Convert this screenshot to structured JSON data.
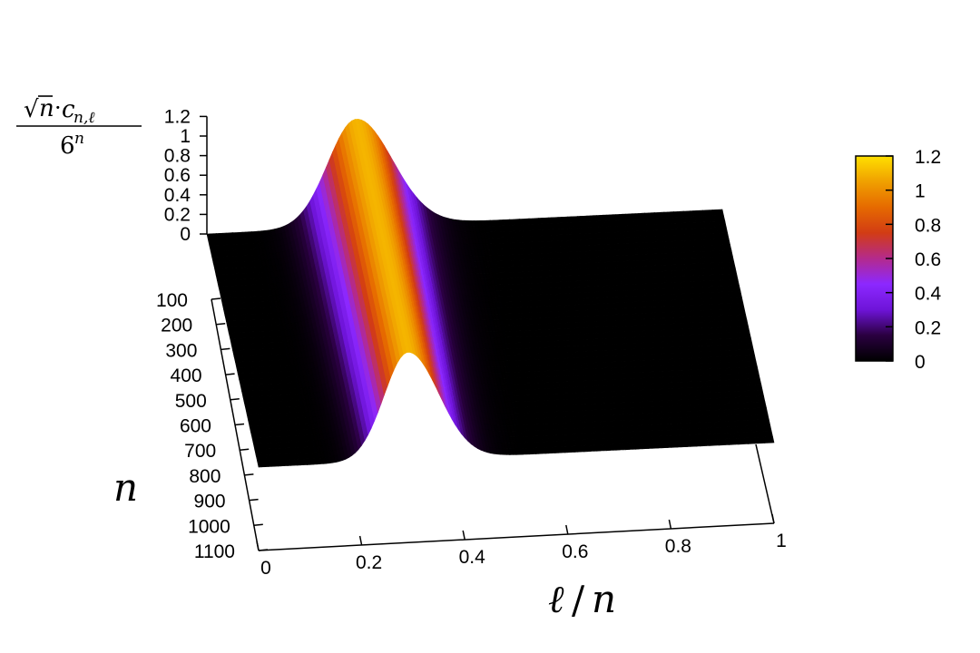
{
  "chart_data": {
    "type": "surface3d",
    "x_axis": {
      "label": "ℓ/n",
      "range": [
        0,
        1
      ],
      "ticks": [
        "0",
        "0.2",
        "0.4",
        "0.6",
        "0.8",
        "1"
      ]
    },
    "y_axis": {
      "label": "n",
      "range": [
        100,
        1100
      ],
      "ticks": [
        "100",
        "200",
        "300",
        "400",
        "500",
        "600",
        "700",
        "800",
        "900",
        "1000",
        "1100"
      ]
    },
    "z_axis": {
      "label": "√n·c_{n,ℓ} / 6^n",
      "range": [
        0,
        1.2
      ],
      "ticks": [
        "0",
        "0.2",
        "0.4",
        "0.6",
        "0.8",
        "1",
        "1.2"
      ]
    },
    "colorbar": {
      "range": [
        0,
        1.2
      ],
      "ticks": [
        "0",
        "0.2",
        "0.4",
        "0.6",
        "0.8",
        "1",
        "1.2"
      ],
      "palette": [
        "#000000",
        "#2a0040",
        "#6e14d8",
        "#8c28ff",
        "#b42a8c",
        "#d23c14",
        "#e66a00",
        "#f0a000",
        "#ffe000"
      ]
    },
    "surface": {
      "peak_x": 0.29,
      "peak_height": 1.1,
      "left_width": 0.055,
      "right_width": 0.07,
      "ridge_width_by_n": [
        {
          "n": 100,
          "scale": 1.0
        },
        {
          "n": 1100,
          "scale": 0.85
        }
      ]
    },
    "grid": false,
    "legend": "colorbar right"
  }
}
